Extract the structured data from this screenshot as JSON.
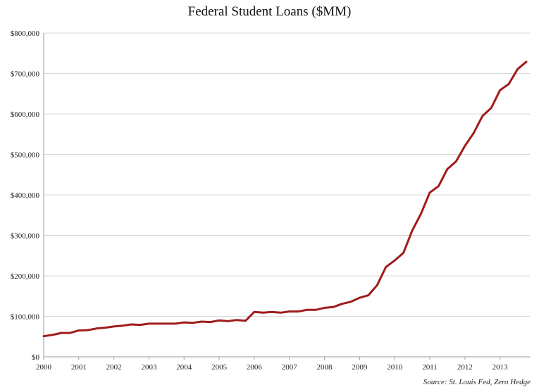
{
  "chart_data": {
    "type": "line",
    "title": "Federal Student Loans ($MM)",
    "xlabel": "",
    "ylabel": "",
    "source": "Source: St. Louis Fed, Zero Hedge",
    "ylim": [
      0,
      800000
    ],
    "yticks": [
      0,
      100000,
      200000,
      300000,
      400000,
      500000,
      600000,
      700000,
      800000
    ],
    "ytick_labels": [
      "$0",
      "$100,000",
      "$200,000",
      "$300,000",
      "$400,000",
      "$500,000",
      "$600,000",
      "$700,000",
      "$800,000"
    ],
    "xlim": [
      2000,
      2013.85
    ],
    "xticks": [
      2000,
      2001,
      2002,
      2003,
      2004,
      2005,
      2006,
      2007,
      2008,
      2009,
      2010,
      2011,
      2012,
      2013
    ],
    "xtick_labels": [
      "2000",
      "2001",
      "2002",
      "2003",
      "2004",
      "2005",
      "2006",
      "2007",
      "2008",
      "2009",
      "2010",
      "2011",
      "2012",
      "2013"
    ],
    "grid": true,
    "line_color": "#a01c1c",
    "series": [
      {
        "values": [
          [
            2000.0,
            51000
          ],
          [
            2000.25,
            54000
          ],
          [
            2000.5,
            59000
          ],
          [
            2000.75,
            59000
          ],
          [
            2001.0,
            65000
          ],
          [
            2001.25,
            66000
          ],
          [
            2001.5,
            70000
          ],
          [
            2001.75,
            72000
          ],
          [
            2002.0,
            75000
          ],
          [
            2002.25,
            77000
          ],
          [
            2002.5,
            80000
          ],
          [
            2002.75,
            79000
          ],
          [
            2003.0,
            82000
          ],
          [
            2003.25,
            82000
          ],
          [
            2003.5,
            82000
          ],
          [
            2003.75,
            82000
          ],
          [
            2004.0,
            85000
          ],
          [
            2004.25,
            84000
          ],
          [
            2004.5,
            87000
          ],
          [
            2004.75,
            86000
          ],
          [
            2005.0,
            90000
          ],
          [
            2005.25,
            88000
          ],
          [
            2005.5,
            91000
          ],
          [
            2005.75,
            89000
          ],
          [
            2006.0,
            111000
          ],
          [
            2006.25,
            109000
          ],
          [
            2006.5,
            111000
          ],
          [
            2006.75,
            109000
          ],
          [
            2007.0,
            112000
          ],
          [
            2007.25,
            112000
          ],
          [
            2007.5,
            116000
          ],
          [
            2007.75,
            116000
          ],
          [
            2008.0,
            121000
          ],
          [
            2008.25,
            123000
          ],
          [
            2008.5,
            131000
          ],
          [
            2008.75,
            136000
          ],
          [
            2009.0,
            146000
          ],
          [
            2009.25,
            152000
          ],
          [
            2009.5,
            177000
          ],
          [
            2009.75,
            222000
          ],
          [
            2010.0,
            238000
          ],
          [
            2010.25,
            257000
          ],
          [
            2010.5,
            312000
          ],
          [
            2010.75,
            354000
          ],
          [
            2011.0,
            406000
          ],
          [
            2011.25,
            422000
          ],
          [
            2011.5,
            464000
          ],
          [
            2011.75,
            483000
          ],
          [
            2012.0,
            521000
          ],
          [
            2012.25,
            553000
          ],
          [
            2012.5,
            595000
          ],
          [
            2012.75,
            615000
          ],
          [
            2013.0,
            659000
          ],
          [
            2013.25,
            674000
          ],
          [
            2013.5,
            711000
          ],
          [
            2013.75,
            729000
          ]
        ]
      }
    ]
  }
}
